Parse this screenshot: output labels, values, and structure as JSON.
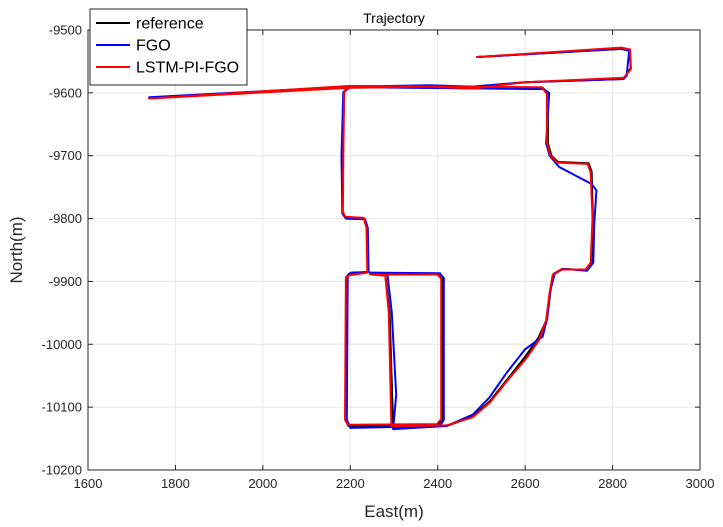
{
  "chart_data": {
    "type": "line",
    "title": "Trajectory",
    "xlabel": "East(m)",
    "ylabel": "North(m)",
    "xlim": [
      1600,
      3000
    ],
    "ylim": [
      -10200,
      -9500
    ],
    "xticks": [
      1600,
      1800,
      2000,
      2200,
      2400,
      2600,
      2800,
      3000
    ],
    "yticks": [
      -10200,
      -10100,
      -10000,
      -9900,
      -9800,
      -9700,
      -9600,
      -9500
    ],
    "xtick_labels": [
      "1600",
      "1800",
      "2000",
      "2200",
      "2400",
      "2600",
      "2800",
      "3000"
    ],
    "ytick_labels": [
      "-10200",
      "-10100",
      "-10000",
      "-9900",
      "-9800",
      "-9700",
      "-9600",
      "-9500"
    ],
    "grid": true,
    "legend_position": "top-left",
    "series": [
      {
        "name": "reference",
        "color": "#000000",
        "points": [
          [
            2490,
            -9543
          ],
          [
            2820,
            -9530
          ],
          [
            2838,
            -9533
          ],
          [
            2842,
            -9560
          ],
          [
            2825,
            -9578
          ],
          [
            2600,
            -9583
          ],
          [
            2480,
            -9592
          ],
          [
            2380,
            -9590
          ],
          [
            2200,
            -9590
          ],
          [
            1740,
            -9608
          ],
          [
            2200,
            -9590
          ],
          [
            2186,
            -9598
          ],
          [
            2182,
            -9700
          ],
          [
            2182,
            -9790
          ],
          [
            2188,
            -9798
          ],
          [
            2232,
            -9800
          ],
          [
            2238,
            -9815
          ],
          [
            2240,
            -9885
          ],
          [
            2200,
            -9888
          ],
          [
            2192,
            -9892
          ],
          [
            2190,
            -10120
          ],
          [
            2196,
            -10130
          ],
          [
            2400,
            -10128
          ],
          [
            2410,
            -10120
          ],
          [
            2410,
            -9895
          ],
          [
            2402,
            -9888
          ],
          [
            2245,
            -9888
          ],
          [
            2280,
            -9890
          ],
          [
            2290,
            -9950
          ],
          [
            2298,
            -10130
          ],
          [
            2420,
            -10130
          ],
          [
            2480,
            -10115
          ],
          [
            2520,
            -10090
          ],
          [
            2560,
            -10055
          ],
          [
            2600,
            -10020
          ],
          [
            2630,
            -9990
          ],
          [
            2650,
            -9960
          ],
          [
            2658,
            -9915
          ],
          [
            2665,
            -9888
          ],
          [
            2685,
            -9880
          ],
          [
            2740,
            -9882
          ],
          [
            2752,
            -9870
          ],
          [
            2755,
            -9800
          ],
          [
            2752,
            -9725
          ],
          [
            2745,
            -9712
          ],
          [
            2675,
            -9710
          ],
          [
            2660,
            -9700
          ],
          [
            2652,
            -9680
          ],
          [
            2652,
            -9600
          ],
          [
            2640,
            -9592
          ],
          [
            2200,
            -9590
          ]
        ]
      },
      {
        "name": "FGO",
        "color": "#0000ff",
        "points": [
          [
            2490,
            -9543
          ],
          [
            2820,
            -9530
          ],
          [
            2838,
            -9533
          ],
          [
            2832,
            -9573
          ],
          [
            2825,
            -9578
          ],
          [
            2600,
            -9583
          ],
          [
            2480,
            -9590
          ],
          [
            2380,
            -9588
          ],
          [
            2200,
            -9590
          ],
          [
            1740,
            -9607
          ],
          [
            2200,
            -9591
          ],
          [
            2184,
            -9599
          ],
          [
            2180,
            -9700
          ],
          [
            2182,
            -9792
          ],
          [
            2190,
            -9800
          ],
          [
            2234,
            -9801
          ],
          [
            2240,
            -9815
          ],
          [
            2242,
            -9885
          ],
          [
            2202,
            -9886
          ],
          [
            2194,
            -9890
          ],
          [
            2192,
            -10120
          ],
          [
            2200,
            -10133
          ],
          [
            2405,
            -10130
          ],
          [
            2414,
            -10120
          ],
          [
            2414,
            -9895
          ],
          [
            2405,
            -9887
          ],
          [
            2245,
            -9886
          ],
          [
            2285,
            -9888
          ],
          [
            2295,
            -9950
          ],
          [
            2305,
            -10080
          ],
          [
            2298,
            -10135
          ],
          [
            2420,
            -10130
          ],
          [
            2480,
            -10112
          ],
          [
            2518,
            -10085
          ],
          [
            2558,
            -10045
          ],
          [
            2600,
            -10008
          ],
          [
            2640,
            -9988
          ],
          [
            2650,
            -9960
          ],
          [
            2658,
            -9912
          ],
          [
            2668,
            -9887
          ],
          [
            2688,
            -9880
          ],
          [
            2742,
            -9883
          ],
          [
            2756,
            -9870
          ],
          [
            2758,
            -9810
          ],
          [
            2763,
            -9755
          ],
          [
            2752,
            -9745
          ],
          [
            2678,
            -9718
          ],
          [
            2656,
            -9700
          ],
          [
            2648,
            -9680
          ],
          [
            2655,
            -9600
          ],
          [
            2642,
            -9594
          ],
          [
            2200,
            -9591
          ]
        ]
      },
      {
        "name": "LSTM-PI-FGO",
        "color": "#ff0000",
        "points": [
          [
            2490,
            -9543
          ],
          [
            2820,
            -9528
          ],
          [
            2840,
            -9531
          ],
          [
            2842,
            -9562
          ],
          [
            2826,
            -9576
          ],
          [
            2600,
            -9583
          ],
          [
            2480,
            -9593
          ],
          [
            2380,
            -9590
          ],
          [
            2200,
            -9592
          ],
          [
            1740,
            -9609
          ],
          [
            2200,
            -9589
          ],
          [
            2186,
            -9597
          ],
          [
            2184,
            -9700
          ],
          [
            2183,
            -9790
          ],
          [
            2189,
            -9797
          ],
          [
            2231,
            -9799
          ],
          [
            2237,
            -9815
          ],
          [
            2239,
            -9886
          ],
          [
            2199,
            -9890
          ],
          [
            2190,
            -9893
          ],
          [
            2188,
            -10120
          ],
          [
            2194,
            -10128
          ],
          [
            2398,
            -10127
          ],
          [
            2408,
            -10119
          ],
          [
            2408,
            -9896
          ],
          [
            2400,
            -9889
          ],
          [
            2246,
            -9889
          ],
          [
            2280,
            -9891
          ],
          [
            2288,
            -9950
          ],
          [
            2294,
            -10130
          ],
          [
            2420,
            -10129
          ],
          [
            2480,
            -10116
          ],
          [
            2520,
            -10092
          ],
          [
            2560,
            -10057
          ],
          [
            2603,
            -10022
          ],
          [
            2632,
            -9993
          ],
          [
            2648,
            -9962
          ],
          [
            2656,
            -9918
          ],
          [
            2663,
            -9890
          ],
          [
            2683,
            -9881
          ],
          [
            2738,
            -9881
          ],
          [
            2750,
            -9870
          ],
          [
            2754,
            -9800
          ],
          [
            2750,
            -9727
          ],
          [
            2743,
            -9713
          ],
          [
            2673,
            -9711
          ],
          [
            2658,
            -9700
          ],
          [
            2650,
            -9680
          ],
          [
            2650,
            -9602
          ],
          [
            2638,
            -9591
          ],
          [
            2200,
            -9589
          ]
        ]
      }
    ]
  }
}
